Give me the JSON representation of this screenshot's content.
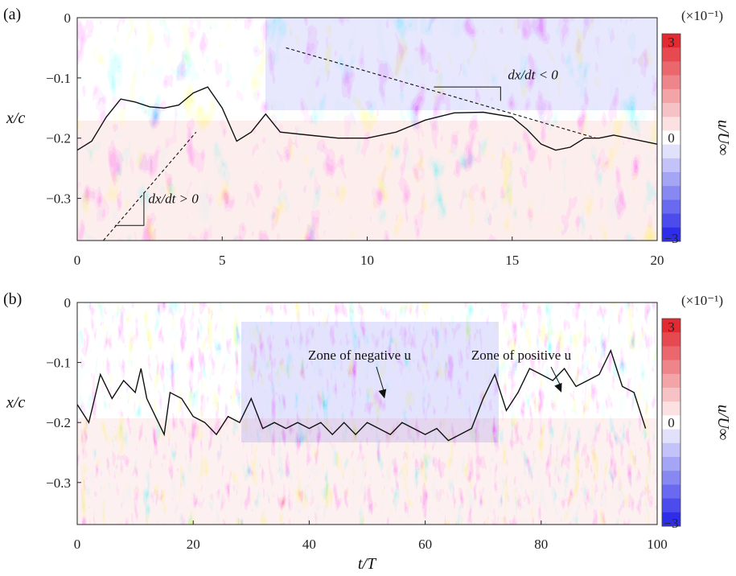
{
  "chart_data": [
    {
      "type": "heatmap",
      "panel_label": "(a)",
      "ylabel": "x/c",
      "xlim": [
        0,
        20
      ],
      "ylim": [
        -0.37,
        0
      ],
      "xticks": [
        "0",
        "5",
        "10",
        "15",
        "20"
      ],
      "xtick_values": [
        0,
        5,
        10,
        15,
        20
      ],
      "yticks": [
        "0",
        "−0.1",
        "−0.2",
        "−0.3"
      ],
      "ytick_values": [
        0,
        -0.1,
        -0.2,
        -0.3
      ],
      "colorbar": {
        "label": "u/U∞",
        "multiplier": "(×10⁻¹)",
        "ticks": [
          "3",
          "0",
          "−3"
        ],
        "tick_values": [
          3,
          0,
          -3
        ],
        "range": [
          -3,
          3
        ],
        "levels": 15,
        "negative_color": "#1f1fe8",
        "positive_color": "#e01b24"
      },
      "separation_line": {
        "x": [
          0,
          0.5,
          1.0,
          1.5,
          2.0,
          2.5,
          3.0,
          3.5,
          4.0,
          4.5,
          5.0,
          5.5,
          6.0,
          6.5,
          7.0,
          8.0,
          9.0,
          10.0,
          11.0,
          12.0,
          13.0,
          14.0,
          15.0,
          15.5,
          16.0,
          16.5,
          17.0,
          17.5,
          18.0,
          18.5,
          19.0,
          20.0
        ],
        "y": [
          -0.22,
          -0.205,
          -0.165,
          -0.135,
          -0.14,
          -0.148,
          -0.15,
          -0.145,
          -0.125,
          -0.115,
          -0.15,
          -0.205,
          -0.19,
          -0.16,
          -0.19,
          -0.195,
          -0.2,
          -0.2,
          -0.19,
          -0.17,
          -0.158,
          -0.157,
          -0.165,
          -0.185,
          -0.21,
          -0.22,
          -0.215,
          -0.2,
          -0.2,
          -0.195,
          -0.2,
          -0.21
        ]
      },
      "slope_lines": [
        {
          "label": "dx/dt > 0",
          "x": [
            0.9,
            4.1
          ],
          "y": [
            -0.37,
            -0.19
          ]
        },
        {
          "label": "dx/dt < 0",
          "x": [
            7.2,
            17.9
          ],
          "y": [
            -0.05,
            -0.2
          ]
        }
      ]
    },
    {
      "type": "heatmap",
      "panel_label": "(b)",
      "xlabel": "t/T",
      "ylabel": "x/c",
      "xlim": [
        0,
        100
      ],
      "ylim": [
        -0.37,
        0
      ],
      "xticks": [
        "0",
        "20",
        "40",
        "60",
        "80",
        "100"
      ],
      "xtick_values": [
        0,
        20,
        40,
        60,
        80,
        100
      ],
      "yticks": [
        "0",
        "−0.1",
        "−0.2",
        "−0.3"
      ],
      "ytick_values": [
        0,
        -0.1,
        -0.2,
        -0.3
      ],
      "colorbar": {
        "label": "u/U∞",
        "multiplier": "(×10⁻¹)",
        "ticks": [
          "3",
          "0",
          "−3"
        ],
        "tick_values": [
          3,
          0,
          -3
        ],
        "range": [
          -3,
          3
        ],
        "levels": 15,
        "negative_color": "#1f1fe8",
        "positive_color": "#e01b24"
      },
      "separation_line": {
        "x": [
          0,
          2,
          4,
          6,
          8,
          10,
          11,
          12,
          14,
          15,
          16,
          18,
          20,
          22,
          24,
          26,
          28,
          30,
          32,
          34,
          36,
          38,
          40,
          42,
          44,
          46,
          48,
          50,
          52,
          54,
          56,
          58,
          60,
          62,
          64,
          66,
          68,
          70,
          72,
          74,
          76,
          78,
          80,
          82,
          84,
          86,
          88,
          90,
          92,
          94,
          96,
          98
        ],
        "y": [
          -0.17,
          -0.2,
          -0.12,
          -0.16,
          -0.13,
          -0.15,
          -0.11,
          -0.16,
          -0.2,
          -0.22,
          -0.15,
          -0.16,
          -0.19,
          -0.2,
          -0.22,
          -0.19,
          -0.2,
          -0.16,
          -0.21,
          -0.2,
          -0.21,
          -0.2,
          -0.21,
          -0.2,
          -0.22,
          -0.2,
          -0.22,
          -0.2,
          -0.21,
          -0.22,
          -0.2,
          -0.21,
          -0.22,
          -0.21,
          -0.23,
          -0.22,
          -0.21,
          -0.16,
          -0.12,
          -0.18,
          -0.15,
          -0.11,
          -0.12,
          -0.13,
          -0.11,
          -0.14,
          -0.13,
          -0.12,
          -0.08,
          -0.14,
          -0.15,
          -0.21
        ]
      },
      "annotations": [
        {
          "text": "Zone of negative u",
          "arrow_to_x": 53,
          "arrow_to_y": -0.16
        },
        {
          "text": "Zone of positive u",
          "arrow_to_x": 83.5,
          "arrow_to_y": -0.15
        }
      ]
    }
  ]
}
